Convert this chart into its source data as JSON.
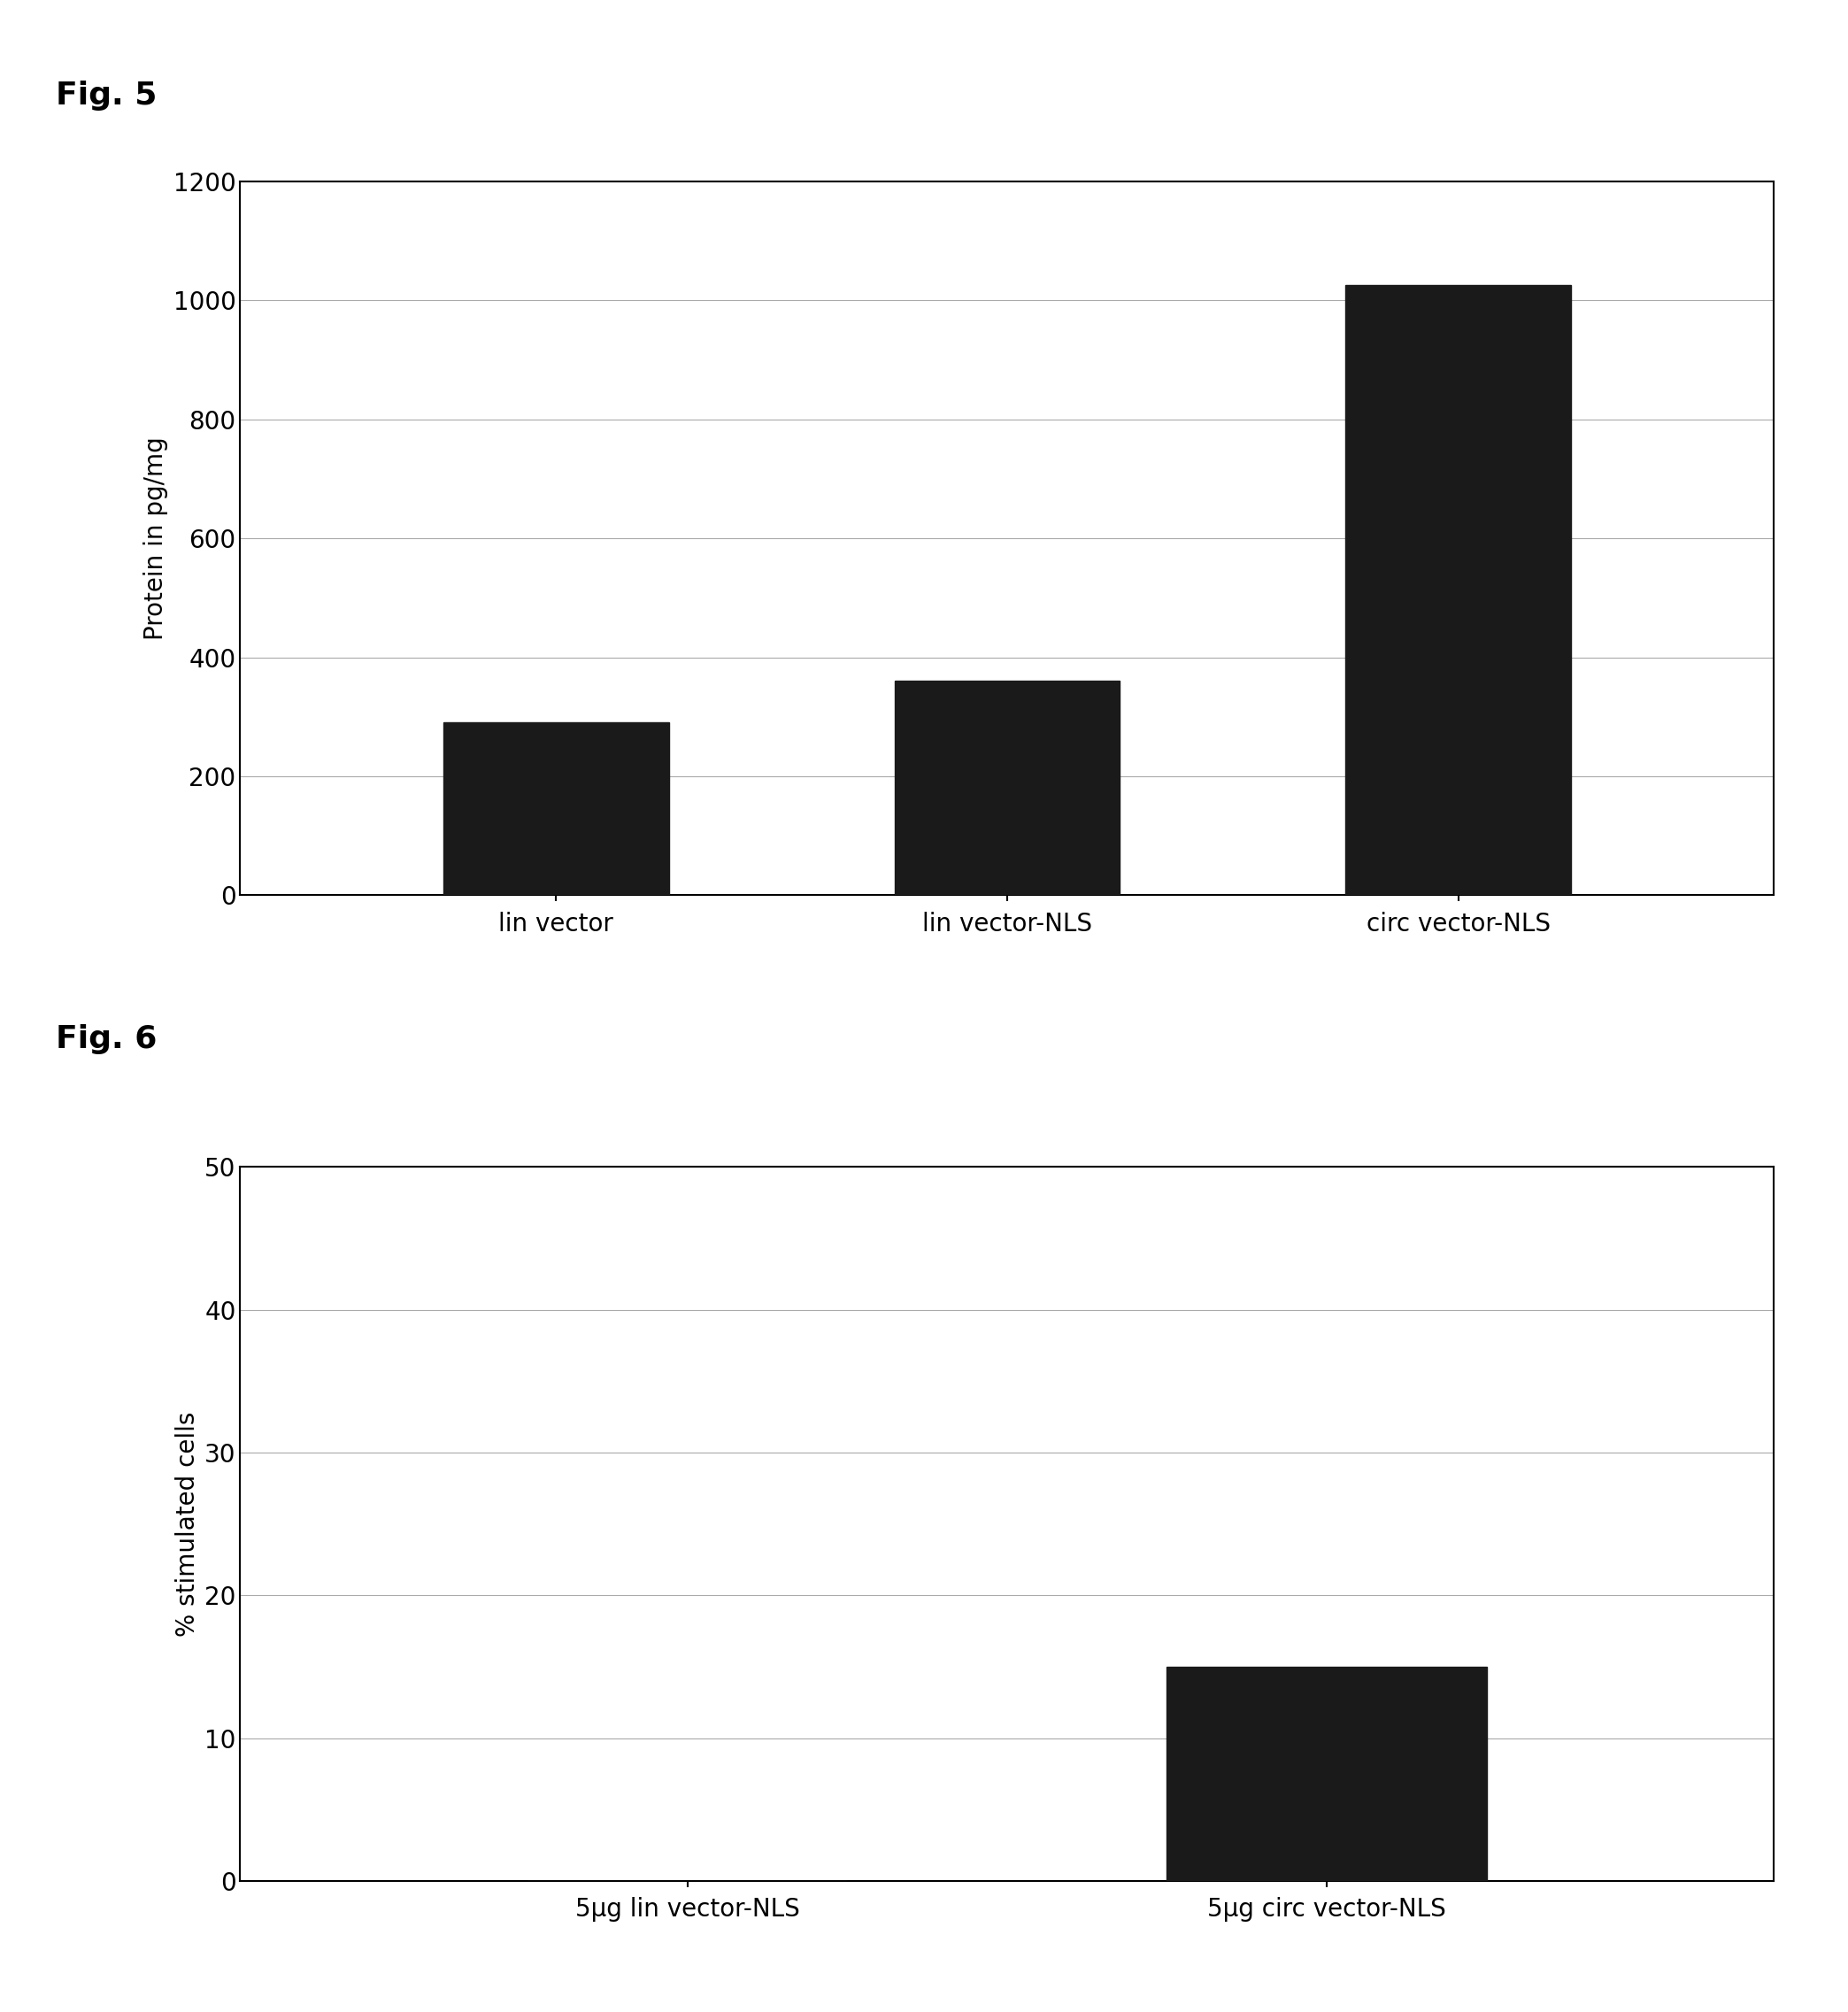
{
  "fig5": {
    "categories": [
      "lin vector",
      "lin vector-NLS",
      "circ vector-NLS"
    ],
    "values": [
      290,
      360,
      1025
    ],
    "bar_color": "#1a1a1a",
    "ylabel": "Protein in pg/mg",
    "ylim": [
      0,
      1200
    ],
    "yticks": [
      0,
      200,
      400,
      600,
      800,
      1000,
      1200
    ],
    "fig_label": "Fig. 5"
  },
  "fig6": {
    "categories": [
      "5μg lin vector-NLS",
      "5μg circ vector-NLS"
    ],
    "values": [
      0,
      15
    ],
    "bar_color": "#1a1a1a",
    "ylabel": "% stimulated cells",
    "ylim": [
      0,
      50
    ],
    "yticks": [
      0,
      10,
      20,
      30,
      40,
      50
    ],
    "fig_label": "Fig. 6"
  },
  "background_color": "#ffffff",
  "fig_label_fontsize": 26,
  "axis_label_fontsize": 20,
  "tick_fontsize": 20,
  "xtick_fontsize": 20,
  "bar_width": 0.5,
  "grid_color": "#aaaaaa",
  "grid_linewidth": 0.8,
  "spine_linewidth": 1.5
}
